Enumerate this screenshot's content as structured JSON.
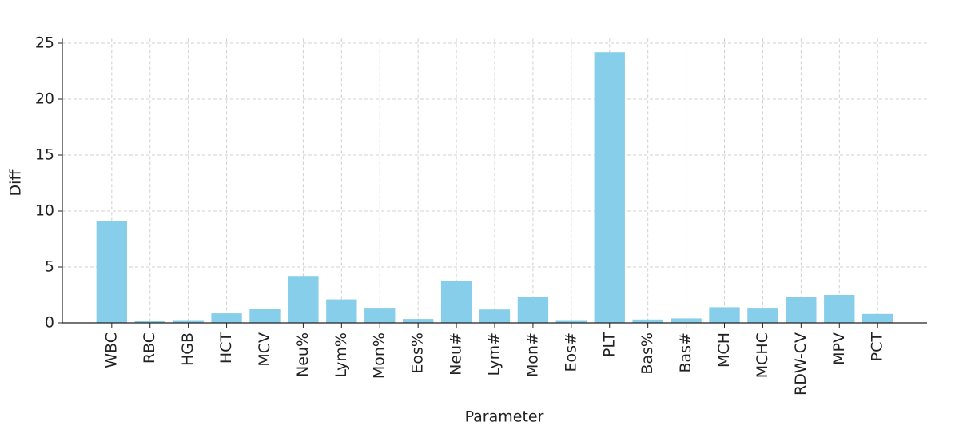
{
  "chart_data": {
    "type": "bar",
    "x_label": "Parameter",
    "y_label": "Diff",
    "categories": [
      "WBC",
      "RBC",
      "HGB",
      "HCT",
      "MCV",
      "Neu%",
      "Lym%",
      "Mon%",
      "Eos%",
      "Neu#",
      "Lym#",
      "Mon#",
      "Eos#",
      "PLT",
      "Bas%",
      "Bas#",
      "MCH",
      "MCHC",
      "RDW-CV",
      "MPV",
      "PCT"
    ],
    "values": [
      9.1,
      0.15,
      0.25,
      0.85,
      1.25,
      4.2,
      2.1,
      1.35,
      0.35,
      3.75,
      1.2,
      2.35,
      0.25,
      24.2,
      0.3,
      0.4,
      1.4,
      1.35,
      2.3,
      2.5,
      0.8
    ],
    "color": "#87ceeb",
    "ylim": [
      0,
      25.4
    ],
    "yticks": [
      0,
      5,
      10,
      15,
      20,
      25
    ],
    "grid": true
  }
}
